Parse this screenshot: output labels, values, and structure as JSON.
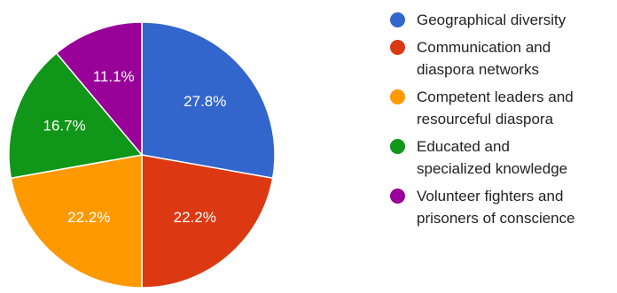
{
  "chart_data": {
    "type": "pie",
    "title": "",
    "categories": [
      "Geographical diversity",
      "Communication and diaspora networks",
      "Competent leaders and resourceful diaspora",
      "Educated and specialized knowledge",
      "Volunteer fighters and prisoners of conscience"
    ],
    "values": [
      27.8,
      22.2,
      22.2,
      16.7,
      11.1
    ],
    "value_labels": [
      "27.8%",
      "22.2%",
      "22.2%",
      "16.7%",
      "11.1%"
    ],
    "colors": [
      "#3366cc",
      "#dc3912",
      "#ff9900",
      "#109618",
      "#990099"
    ],
    "start_angle_deg": 0,
    "direction": "clockwise",
    "legend_position": "right",
    "legend": [
      {
        "label_lines": [
          "Geographical diversity"
        ],
        "color": "#3366cc"
      },
      {
        "label_lines": [
          "Communication and",
          "diaspora networks"
        ],
        "color": "#dc3912"
      },
      {
        "label_lines": [
          "Competent leaders and",
          "resourceful diaspora"
        ],
        "color": "#ff9900"
      },
      {
        "label_lines": [
          "Educated and",
          "specialized knowledge"
        ],
        "color": "#109618"
      },
      {
        "label_lines": [
          "Volunteer fighters and",
          "prisoners of conscience"
        ],
        "color": "#990099"
      }
    ]
  }
}
